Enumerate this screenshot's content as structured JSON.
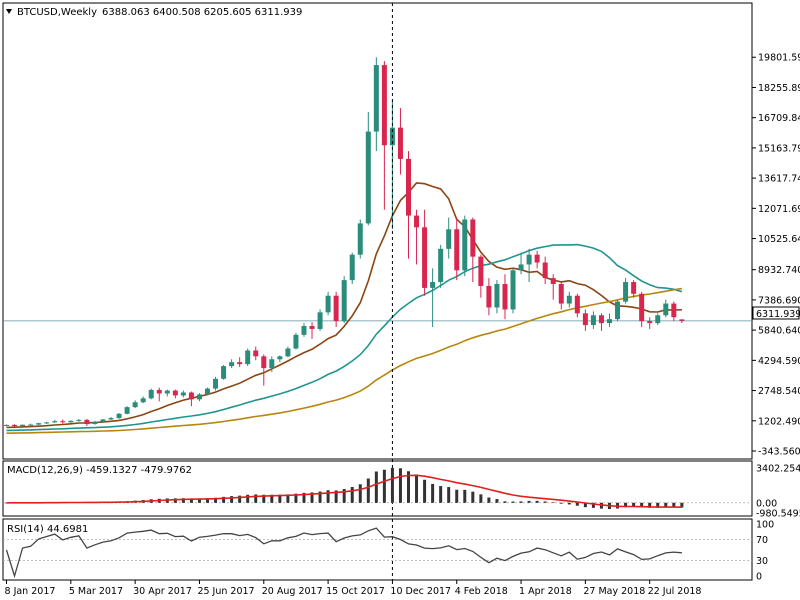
{
  "header": {
    "symbol_label": "BTCUSD,Weekly",
    "ohlc_label": "6388.063 6400.508 6205.605 6311.939"
  },
  "current_price_label": "6311.939",
  "chart_data": [
    {
      "type": "candlestick",
      "panel": "main",
      "symbol": "BTCUSD",
      "timeframe": "Weekly",
      "ylim": [
        -343.56,
        21400
      ],
      "yticks": [
        "19801.590",
        "18255.890",
        "16709.840",
        "15163.790",
        "13617.740",
        "12071.690",
        "10525.640",
        "8932.740",
        "7386.690",
        "5840.640",
        "4294.590",
        "2748.540",
        "1202.490",
        "-343.560"
      ],
      "ytick_values": [
        19801.59,
        18255.89,
        16709.84,
        15163.79,
        13617.74,
        12071.69,
        10525.64,
        8932.74,
        7386.69,
        5840.64,
        4294.59,
        2748.54,
        1202.49,
        -343.56
      ],
      "xticks": [
        "8 Jan 2017",
        "5 Mar 2017",
        "30 Apr 2017",
        "25 Jun 2017",
        "20 Aug 2017",
        "15 Oct 2017",
        "10 Dec 2017",
        "4 Feb 2018",
        "1 Apr 2018",
        "27 May 2018",
        "22 Jul 2018"
      ],
      "xtick_index": [
        0,
        8,
        16,
        24,
        32,
        40,
        48,
        56,
        64,
        72,
        80
      ],
      "current_price": 6311.939,
      "vline_index": 48,
      "candles": [
        [
          960,
          1020,
          920,
          990
        ],
        [
          990,
          1030,
          900,
          930
        ],
        [
          930,
          1010,
          910,
          1000
        ],
        [
          1000,
          1060,
          960,
          1010
        ],
        [
          1010,
          1100,
          980,
          1080
        ],
        [
          1080,
          1150,
          1040,
          1120
        ],
        [
          1120,
          1250,
          1100,
          1180
        ],
        [
          1180,
          1270,
          1050,
          1130
        ],
        [
          1130,
          1220,
          1100,
          1200
        ],
        [
          1200,
          1290,
          1150,
          1250
        ],
        [
          1250,
          1300,
          930,
          1040
        ],
        [
          1040,
          1200,
          1000,
          1150
        ],
        [
          1150,
          1300,
          1100,
          1270
        ],
        [
          1270,
          1400,
          1240,
          1340
        ],
        [
          1340,
          1600,
          1300,
          1560
        ],
        [
          1560,
          1950,
          1530,
          1900
        ],
        [
          1900,
          2250,
          1850,
          2150
        ],
        [
          2150,
          2450,
          2100,
          2350
        ],
        [
          2350,
          2850,
          2300,
          2780
        ],
        [
          2780,
          2900,
          2200,
          2600
        ],
        [
          2600,
          2800,
          2450,
          2750
        ],
        [
          2750,
          2800,
          2350,
          2500
        ],
        [
          2500,
          2750,
          2400,
          2650
        ],
        [
          2650,
          2700,
          1950,
          2300
        ],
        [
          2300,
          2620,
          2200,
          2550
        ],
        [
          2550,
          2900,
          2500,
          2850
        ],
        [
          2850,
          3450,
          2750,
          3350
        ],
        [
          3350,
          4050,
          3300,
          4000
        ],
        [
          4000,
          4350,
          3900,
          4200
        ],
        [
          4200,
          4450,
          3950,
          4100
        ],
        [
          4100,
          4900,
          4000,
          4800
        ],
        [
          4800,
          5000,
          4300,
          4500
        ],
        [
          4500,
          4600,
          3000,
          3900
        ],
        [
          3900,
          4500,
          3700,
          4350
        ],
        [
          4350,
          4550,
          4200,
          4500
        ],
        [
          4500,
          5000,
          4450,
          4900
        ],
        [
          4900,
          5700,
          4850,
          5600
        ],
        [
          5600,
          6200,
          5500,
          6050
        ],
        [
          6050,
          6250,
          5400,
          5900
        ],
        [
          5900,
          6900,
          5800,
          6750
        ],
        [
          6750,
          7800,
          6600,
          7600
        ],
        [
          7600,
          7800,
          6000,
          6300
        ],
        [
          6300,
          8600,
          6200,
          8400
        ],
        [
          8400,
          9800,
          8200,
          9700
        ],
        [
          9700,
          11500,
          9500,
          11300
        ],
        [
          11300,
          17000,
          11200,
          16000
        ],
        [
          16000,
          19800,
          15000,
          19400
        ],
        [
          19400,
          19600,
          12000,
          15300
        ],
        [
          15300,
          17600,
          11000,
          16200
        ],
        [
          16200,
          17200,
          13800,
          14600
        ],
        [
          14600,
          15000,
          9500,
          11700
        ],
        [
          11700,
          12000,
          9200,
          11100
        ],
        [
          11100,
          12000,
          7600,
          8000
        ],
        [
          8000,
          9000,
          6000,
          8300
        ],
        [
          8300,
          10200,
          8000,
          10000
        ],
        [
          10000,
          11600,
          9500,
          11000
        ],
        [
          11000,
          11600,
          8400,
          8900
        ],
        [
          8900,
          11700,
          8600,
          11500
        ],
        [
          11500,
          11600,
          8300,
          9600
        ],
        [
          9600,
          9700,
          7500,
          8100
        ],
        [
          8100,
          8500,
          6600,
          7000
        ],
        [
          7000,
          8400,
          6700,
          8200
        ],
        [
          8200,
          8700,
          6400,
          6900
        ],
        [
          6900,
          9000,
          6700,
          8900
        ],
        [
          8900,
          9800,
          8700,
          9200
        ],
        [
          9200,
          10000,
          8300,
          9700
        ],
        [
          9700,
          9900,
          9000,
          9300
        ],
        [
          9300,
          9600,
          8200,
          8500
        ],
        [
          8500,
          8700,
          7400,
          8200
        ],
        [
          8200,
          8300,
          6900,
          7200
        ],
        [
          7200,
          7800,
          7000,
          7600
        ],
        [
          7600,
          7700,
          6500,
          6700
        ],
        [
          6700,
          6900,
          5800,
          6100
        ],
        [
          6100,
          6800,
          5900,
          6600
        ],
        [
          6600,
          6700,
          5800,
          6200
        ],
        [
          6200,
          6700,
          6000,
          6400
        ],
        [
          6400,
          7400,
          6300,
          7300
        ],
        [
          7300,
          8500,
          7200,
          8300
        ],
        [
          8300,
          8400,
          7500,
          7700
        ],
        [
          7700,
          7800,
          6000,
          6300
        ],
        [
          6300,
          6500,
          5900,
          6200
        ],
        [
          6200,
          6700,
          6100,
          6600
        ],
        [
          6600,
          7400,
          6500,
          7200
        ],
        [
          7200,
          7300,
          6300,
          6500
        ],
        [
          6388.063,
          6400.508,
          6205.605,
          6311.939
        ]
      ]
    },
    {
      "type": "macd",
      "panel": "macd",
      "label": "MACD(12,26,9) -459.1327 -479.9762",
      "params": [
        12,
        26,
        9
      ],
      "macd": -459.1327,
      "signal": -479.9762,
      "yticks": [
        "3402.2548",
        "0.00",
        "-980.5495"
      ],
      "ytick_values": [
        3402.2548,
        0,
        -980.5495
      ],
      "ylim": [
        -1100,
        3700
      ]
    },
    {
      "type": "rsi",
      "panel": "rsi",
      "label": "RSI(14) 44.6981",
      "period": 14,
      "value": 44.6981,
      "levels": [
        70,
        30
      ],
      "yticks": [
        "100",
        "70",
        "30",
        "0"
      ],
      "ylim": [
        0,
        100
      ]
    }
  ]
}
